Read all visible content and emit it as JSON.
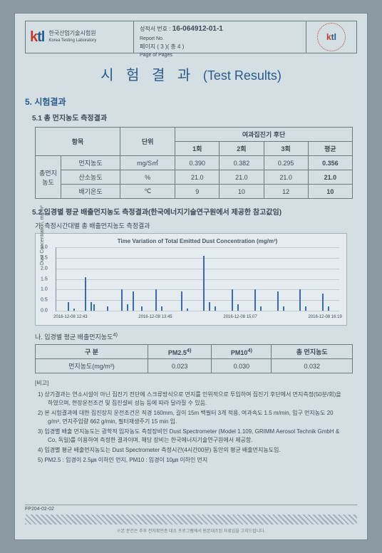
{
  "header": {
    "logo_text": "ktl",
    "org_kr": "한국산업기술시험원",
    "org_en": "Korea Testing Laboratory",
    "report_no_label": "성적서 번호 :",
    "report_no_en": "Report No.",
    "report_no": "16-064912-01-1",
    "page_label": "페이지 ( 3 )( 총 4 )",
    "page_en": "Page of Pages"
  },
  "title_kr": "시 험 결 과",
  "title_en": "(Test Results)",
  "section5": {
    "heading": "5. 시험결과",
    "sub51": "5.1 총 먼지농도 측정결과",
    "table1": {
      "h_item": "항목",
      "h_unit": "단위",
      "h_group": "여과집진기 후단",
      "h_r1": "1회",
      "h_r2": "2회",
      "h_r3": "3회",
      "h_avg": "평균",
      "rowgroup": "총먼지\n농도",
      "rows": [
        {
          "item": "먼지농도",
          "unit": "mg/S㎥",
          "v1": "0.390",
          "v2": "0.382",
          "v3": "0.295",
          "avg": "0.356"
        },
        {
          "item": "산소농도",
          "unit": "%",
          "v1": "21.0",
          "v2": "21.0",
          "v3": "21.0",
          "avg": "21.0"
        },
        {
          "item": "배기온도",
          "unit": "℃",
          "v1": "9",
          "v2": "10",
          "v3": "12",
          "avg": "10"
        }
      ]
    },
    "sub52": "5.2 입경별 평균 배출먼지농도 측정결과(한국에너지기술연구원에서 제공한 참고값임)",
    "sub52a": "가. 측정시간대별 총 배출먼지농도 측정결과",
    "chart": {
      "title": "Time Variation of Total Emitted Dust Concentration (mg/m³)",
      "ylabel": "Dust Concentration, mg/m³",
      "ylim": [
        0,
        3.0
      ],
      "ytick_step": 0.5,
      "yticks": [
        "0.0",
        "0.5",
        "1.0",
        "1.5",
        "2.0",
        "2.5",
        "3.0"
      ],
      "xticks": [
        "2016-12-08 12:43",
        "2016-12-08 13:45",
        "2016-12-08 15:07",
        "2016-12-08 16:19"
      ],
      "bar_color": "#3a6aaa",
      "background": "#e4ecf0",
      "grid_color": "#c0ccd2",
      "bars": [
        {
          "x": 4,
          "h": 0.4
        },
        {
          "x": 6,
          "h": 0.1
        },
        {
          "x": 10,
          "h": 1.6
        },
        {
          "x": 12,
          "h": 0.4
        },
        {
          "x": 13,
          "h": 0.3
        },
        {
          "x": 18,
          "h": 0.2
        },
        {
          "x": 23,
          "h": 1.0
        },
        {
          "x": 25,
          "h": 0.3
        },
        {
          "x": 27,
          "h": 0.9
        },
        {
          "x": 30,
          "h": 0.2
        },
        {
          "x": 35,
          "h": 1.0
        },
        {
          "x": 37,
          "h": 0.2
        },
        {
          "x": 44,
          "h": 0.9
        },
        {
          "x": 46,
          "h": 0.1
        },
        {
          "x": 52,
          "h": 2.6
        },
        {
          "x": 54,
          "h": 0.4
        },
        {
          "x": 56,
          "h": 0.2
        },
        {
          "x": 62,
          "h": 1.0
        },
        {
          "x": 64,
          "h": 0.3
        },
        {
          "x": 70,
          "h": 1.0
        },
        {
          "x": 72,
          "h": 0.2
        },
        {
          "x": 78,
          "h": 0.9
        },
        {
          "x": 80,
          "h": 0.2
        },
        {
          "x": 86,
          "h": 1.0
        },
        {
          "x": 88,
          "h": 0.2
        },
        {
          "x": 94,
          "h": 0.8
        },
        {
          "x": 96,
          "h": 0.2
        }
      ]
    },
    "sub52b": "나. 입경별 평균 배출먼지농도",
    "table2": {
      "h_cat": "구 분",
      "h_pm25": "PM2.5",
      "h_pm10": "PM10",
      "h_total": "총 먼지농도",
      "row_label": "먼지농도(mg/m³)",
      "v25": "0.023",
      "v10": "0.030",
      "vtot": "0.032",
      "sup": "4)"
    },
    "notes_hd": "[비고]",
    "notes": [
      "1) 상기결과는 연소시설이 아닌 집진기 전단에 스크류방식으로 먼지를 인위적으로 투입하여 집진기 후단에서 먼지측정(50분/회)을 하였으며, 현장운전조건 및 집진설비 성능 등에 따라 달라질 수 있음.",
      "2) 본 시험결과에 대한 집진장치 운전조건은 직경 160mm, 길이 15m 백필터 3개 적용, 여과속도 1.5 m/min, 입구 먼지농도 20 g/m³, 먼지주입량 662 g/min, 필터재생주기 15 min 임.",
      "3) 입경별 배출 먼지농도는 광학적 입자농도 측정장비인 Dust Spectrometer (Model 1.109, GRIMM Aerosol Technik GmbH & Co, 독일)를 이용하여 측정한 결과이며, 해당 장비는 한국에너지기술연구원에서 제공함.",
      "4) 입경별 평균 배출먼지농도는 Dust Spectrometer 측정시간(4시간00분) 동안의 평균 배출먼지농도임.",
      "5) PM2.5 : 입경이 2.5㎛ 이하인 먼지, PM10 : 입경이 10㎛ 이하인 먼지"
    ]
  },
  "footer": {
    "form": "FP204-02-02",
    "micro": "※본 문건은 추후 전자확인증 대조 프로그램에서 원본대조된 자료임을 고지드립니다."
  }
}
